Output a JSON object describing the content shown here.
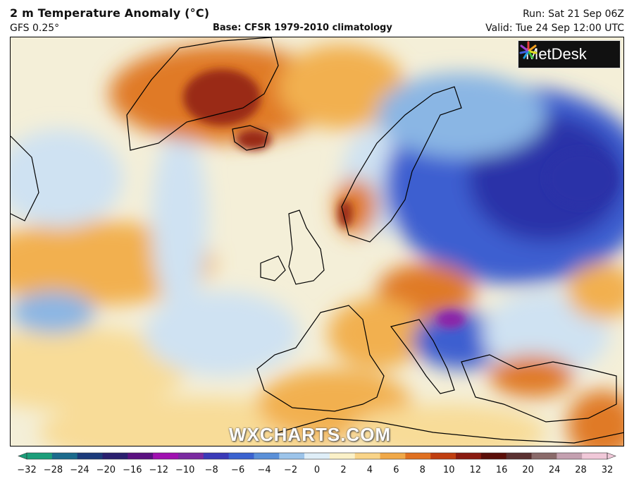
{
  "header": {
    "title": "2 m Temperature Anomaly (°C)",
    "model": "GFS 0.25°",
    "base": "Base: CFSR 1979-2010 climatology",
    "run": "Run: Sat 21 Sep 06Z",
    "valid": "Valid: Tue 24 Sep 12:00 UTC"
  },
  "logo": {
    "text": "MetDesk",
    "icon": "metdesk-star-icon"
  },
  "watermark": "WXCHARTS.COM",
  "legend": {
    "ticks": [
      "−32",
      "−28",
      "−24",
      "−20",
      "−16",
      "−12",
      "−10",
      "−8",
      "−6",
      "−4",
      "−2",
      "0",
      "2",
      "4",
      "6",
      "8",
      "10",
      "12",
      "16",
      "20",
      "24",
      "28",
      "32"
    ],
    "colors": [
      "#1a9e7a",
      "#1a6a8c",
      "#1b3a7a",
      "#2a1f6e",
      "#5a1080",
      "#a010b0",
      "#7a2aa0",
      "#3a3ab8",
      "#3a62d0",
      "#5a90d8",
      "#9cc4ea",
      "#dfeef8",
      "#fbf1c8",
      "#f9d488",
      "#f0a848",
      "#e07020",
      "#c03e10",
      "#8a1a10",
      "#5a0e08",
      "#5a3030",
      "#8a6a6a",
      "#c4a0b0",
      "#f0c8d8"
    ]
  },
  "map_colors": {
    "ocean_neutral": "#f4efd8",
    "warm_light": "#f8dc98",
    "warm_mid": "#f2b050",
    "warm_strong": "#e07a28",
    "hot": "#9a2a14",
    "cool_light": "#cfe2f2",
    "cool_mid": "#8ab6e4",
    "cold": "#3d5ed0",
    "very_cold": "#2a30a8",
    "extreme_cold": "#8a20a8"
  }
}
